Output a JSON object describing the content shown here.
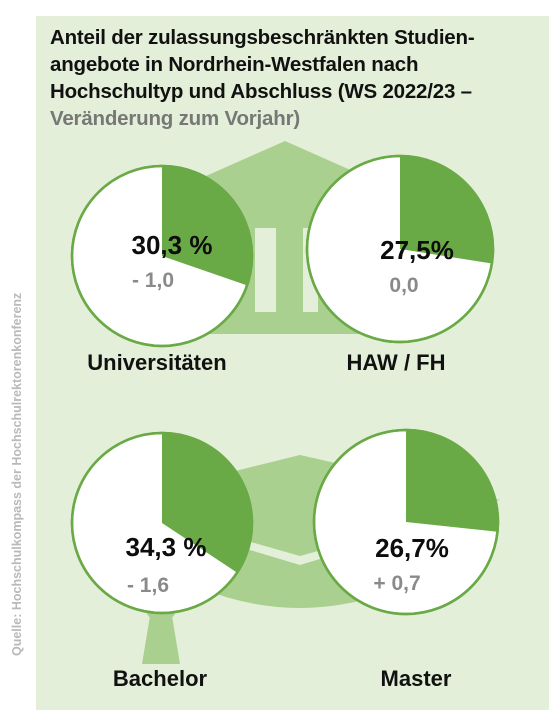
{
  "title_line1": "Anteil der zulassungsbeschränkten Studien-",
  "title_line2": "angebote in Nordrhein-Westfalen nach",
  "title_line3": "Hochschultyp und Abschluss (WS 2022/23 –",
  "title_line4": "Veränderung zum Vorjahr)",
  "source": "Quelle: Hochschulkompass der Hochschulrektorenkonferenz",
  "colors": {
    "background": "#e3efd8",
    "slice": "#6aaa46",
    "ring": "#6aaa46",
    "icon": "#a9d08e",
    "change_text": "#8a8a8a"
  },
  "icons": [
    "university-building-icon",
    "graduation-cap-icon"
  ],
  "chart_data": [
    {
      "type": "pie",
      "category": "Universitäten",
      "share": 30.3,
      "share_label": "30,3 %",
      "change": -1.0,
      "change_label": "- 1,0"
    },
    {
      "type": "pie",
      "category": "HAW / FH",
      "share": 27.5,
      "share_label": "27,5%",
      "change": 0.0,
      "change_label": "0,0"
    },
    {
      "type": "pie",
      "category": "Bachelor",
      "share": 34.3,
      "share_label": "34,3 %",
      "change": -1.6,
      "change_label": "- 1,6"
    },
    {
      "type": "pie",
      "category": "Master",
      "share": 26.7,
      "share_label": "26,7%",
      "change": 0.7,
      "change_label": "+ 0,7"
    }
  ]
}
